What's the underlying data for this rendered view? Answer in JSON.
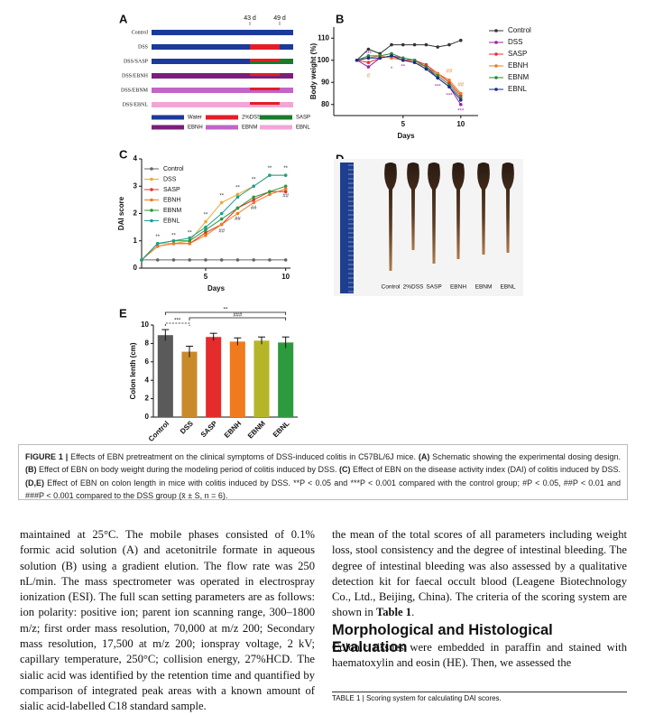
{
  "figure": {
    "panel_a": {
      "label": "A",
      "markers": [
        "43 d",
        "49 d"
      ],
      "groups": [
        "Control",
        "DSS",
        "DSS/SASP",
        "DSS/EBNH",
        "DSS/EBNM",
        "DSS/EBNL"
      ],
      "legend": [
        {
          "name": "Water",
          "color": "#1b3a9a"
        },
        {
          "name": "2%DSS",
          "color": "#e41e26"
        },
        {
          "name": "SASP",
          "color": "#1c7a2c"
        },
        {
          "name": "EBNH",
          "color": "#7a1f7a"
        },
        {
          "name": "EBNM",
          "color": "#c264c8"
        },
        {
          "name": "EBNL",
          "color": "#f2a6d6"
        }
      ]
    },
    "panel_d": {
      "label": "D",
      "samples": [
        "Control",
        "2%DSS",
        "SASP",
        "EBNH",
        "EBNM",
        "EBNL"
      ]
    },
    "caption": [
      {
        "text": "FIGURE 1 | ",
        "bold": true
      },
      {
        "text": "Effects of EBN pretreatment on the clinical symptoms of DSS-induced colitis in C57BL/6J mice. "
      },
      {
        "text": "(A)",
        "bold": true
      },
      {
        "text": " Schematic showing the experimental dosing design. "
      },
      {
        "text": "(B)",
        "bold": true
      },
      {
        "text": " Effect of EBN on body weight during the modeling period of colitis induced by DSS. "
      },
      {
        "text": "(C)",
        "bold": true
      },
      {
        "text": " Effect of EBN on the disease activity index (DAI) of colitis induced by DSS. "
      },
      {
        "text": "(D,E)",
        "bold": true
      },
      {
        "text": " Effect of EBN on colon length in mice with colitis induced by DSS. **P < 0.05 and ***P < 0.001 compared with the control group; #P < 0.05, ##P < 0.01 and ###P < 0.001 compared to the DSS group (x̄ ± S, n = 6)."
      }
    ]
  },
  "chart_data": [
    {
      "type": "line",
      "label": "B",
      "xlabel": "Days",
      "ylabel": "Body weight (%)",
      "x": [
        1,
        2,
        3,
        4,
        5,
        6,
        7,
        8,
        9,
        10
      ],
      "xlim": [
        -1,
        11.5
      ],
      "xticks": [
        5,
        10
      ],
      "ylim": [
        75,
        115
      ],
      "yticks": [
        80,
        90,
        100,
        110
      ],
      "legend": "right",
      "series": [
        {
          "name": "Control",
          "color": "#333333",
          "values": [
            100,
            105,
            103,
            107,
            107,
            107,
            107,
            106,
            107,
            109
          ]
        },
        {
          "name": "DSS",
          "color": "#a020a0",
          "values": [
            100,
            97,
            101,
            102,
            101,
            100,
            97,
            92,
            88,
            80
          ]
        },
        {
          "name": "SASP",
          "color": "#e8302a",
          "values": [
            100,
            99,
            101,
            102,
            100,
            100,
            98,
            94,
            90,
            84
          ]
        },
        {
          "name": "EBNH",
          "color": "#f07a1e",
          "values": [
            100,
            101,
            102,
            101,
            100,
            99,
            97,
            94,
            91,
            85
          ]
        },
        {
          "name": "EBNM",
          "color": "#2a8a3a",
          "values": [
            100,
            102,
            102,
            103,
            101,
            100,
            97,
            93,
            89,
            83
          ]
        },
        {
          "name": "EBNL",
          "color": "#1b2a8a",
          "values": [
            100,
            101,
            101,
            102,
            100,
            99,
            96,
            92,
            88,
            82
          ]
        }
      ],
      "annotations": [
        {
          "text": "***",
          "x": 2,
          "y": 103,
          "color": "#a020a0"
        },
        {
          "text": "#",
          "x": 2,
          "y": 93,
          "color": "#f07a1e"
        },
        {
          "text": "*",
          "x": 4,
          "y": 96,
          "color": "#a020a0"
        },
        {
          "text": "**",
          "x": 5,
          "y": 97,
          "color": "#a020a0"
        },
        {
          "text": "***",
          "x": 8,
          "y": 88,
          "color": "#a020a0"
        },
        {
          "text": "##",
          "x": 9,
          "y": 95,
          "color": "#f07a1e"
        },
        {
          "text": "***",
          "x": 9,
          "y": 84,
          "color": "#a020a0"
        },
        {
          "text": "##",
          "x": 10,
          "y": 89,
          "color": "#f07a1e"
        },
        {
          "text": "***",
          "x": 10,
          "y": 77,
          "color": "#a020a0"
        }
      ]
    },
    {
      "type": "line",
      "label": "C",
      "xlabel": "Days",
      "ylabel": "DAI score",
      "x": [
        1,
        2,
        3,
        4,
        5,
        6,
        7,
        8,
        9,
        10
      ],
      "xlim": [
        1,
        10.3
      ],
      "xticks": [
        5,
        10
      ],
      "ylim": [
        0,
        4
      ],
      "yticks": [
        0,
        1,
        2,
        3,
        4
      ],
      "legend": "upper-left",
      "series": [
        {
          "name": "Control",
          "color": "#666666",
          "values": [
            0.3,
            0.3,
            0.3,
            0.3,
            0.3,
            0.3,
            0.3,
            0.3,
            0.3,
            0.3
          ]
        },
        {
          "name": "DSS",
          "color": "#f0a830",
          "values": [
            0.3,
            0.9,
            0.9,
            1.0,
            1.7,
            2.4,
            2.7,
            3.0,
            3.4,
            3.4
          ]
        },
        {
          "name": "SASP",
          "color": "#e8302a",
          "values": [
            0.3,
            0.8,
            0.9,
            0.9,
            1.3,
            1.6,
            2.2,
            2.5,
            2.8,
            2.8
          ]
        },
        {
          "name": "EBNH",
          "color": "#f07a1e",
          "values": [
            0.3,
            0.8,
            0.9,
            0.9,
            1.2,
            1.6,
            2.0,
            2.4,
            2.7,
            2.9
          ]
        },
        {
          "name": "EBNM",
          "color": "#2a9a3a",
          "values": [
            0.3,
            0.9,
            1.0,
            1.0,
            1.4,
            1.8,
            2.2,
            2.6,
            2.8,
            3.0
          ]
        },
        {
          "name": "EBNL",
          "color": "#1aa090",
          "values": [
            0.3,
            0.9,
            1.0,
            1.1,
            1.5,
            2.0,
            2.6,
            3.0,
            3.4,
            3.4
          ]
        }
      ],
      "annotations": [
        {
          "text": "**",
          "x": 2,
          "y": 1.15,
          "color": "#333333"
        },
        {
          "text": "**",
          "x": 3,
          "y": 1.2,
          "color": "#333333"
        },
        {
          "text": "**",
          "x": 4,
          "y": 1.3,
          "color": "#333333"
        },
        {
          "text": "**",
          "x": 5,
          "y": 1.95,
          "color": "#333333"
        },
        {
          "text": "**",
          "x": 6,
          "y": 2.65,
          "color": "#333333"
        },
        {
          "text": "**",
          "x": 7,
          "y": 2.95,
          "color": "#333333"
        },
        {
          "text": "**",
          "x": 8,
          "y": 3.25,
          "color": "#333333"
        },
        {
          "text": "**",
          "x": 9,
          "y": 3.65,
          "color": "#333333"
        },
        {
          "text": "**",
          "x": 10,
          "y": 3.65,
          "color": "#333333"
        },
        {
          "text": "##",
          "x": 6,
          "y": 1.35,
          "color": "#333333"
        },
        {
          "text": "##",
          "x": 7,
          "y": 1.8,
          "color": "#333333"
        },
        {
          "text": "##",
          "x": 8,
          "y": 2.2,
          "color": "#333333"
        },
        {
          "text": "##",
          "x": 10,
          "y": 2.65,
          "color": "#333333"
        }
      ]
    },
    {
      "type": "bar",
      "label": "E",
      "ylabel": "Colon lenth (cm)",
      "categories": [
        "Control",
        "DSS",
        "SASP",
        "EBNH",
        "EBNM",
        "EBNL"
      ],
      "values": [
        8.9,
        7.1,
        8.7,
        8.2,
        8.3,
        8.1
      ],
      "errors": [
        0.6,
        0.6,
        0.4,
        0.4,
        0.4,
        0.6
      ],
      "colors": [
        "#5a5a5a",
        "#c98a2b",
        "#e52c2c",
        "#f07a1e",
        "#b5b52a",
        "#2e9a3e"
      ],
      "ylim": [
        0,
        10
      ],
      "yticks": [
        0,
        2,
        4,
        6,
        8,
        10
      ],
      "brackets": [
        {
          "text": "***",
          "from": 0,
          "to": 1
        },
        {
          "text": "###",
          "from": 1,
          "to": 5
        },
        {
          "text": "**",
          "from": 0,
          "to": 5
        }
      ]
    }
  ],
  "body": {
    "left": "maintained at 25°C. The mobile phases consisted of 0.1% formic acid solution (A) and acetonitrile formate in aqueous solution (B) using a gradient elution. The flow rate was 250 nL/min. The mass spectrometer was operated in electrospray ionization (ESI). The full scan setting parameters are as follows: ion polarity: positive ion; parent ion scanning range, 300–1800 m/z; first order mass resolution, 70,000 at m/z 200; Secondary mass resolution, 17,500 at m/z 200; ionspray voltage, 2 kV; capillary temperature, 250°C; collision energy, 27%HCD. The sialic acid was identified by the retention time and quantified by comparison of integrated peak areas with a known amount of sialic acid-labelled C18 standard sample.",
    "right": [
      {
        "text": "the mean of the total scores of all parameters including weight loss, stool consistency and the degree of intestinal bleeding. The degree of intestinal bleeding was also assessed by a qualitative detection kit for faecal occult blood (Leagene Biotechnology Co., Ltd., Beijing, China). The criteria of the scoring system are shown in "
      },
      {
        "text": "Table 1",
        "bold": true
      },
      {
        "text": "."
      }
    ],
    "heading": "Morphological and Histological Evaluation",
    "paragraph": "Colonic tissues were embedded in paraffin and stained with haematoxylin and eosin (HE). Then, we assessed the",
    "table_caption": "TABLE 1 | Scoring system for calculating DAI scores."
  }
}
